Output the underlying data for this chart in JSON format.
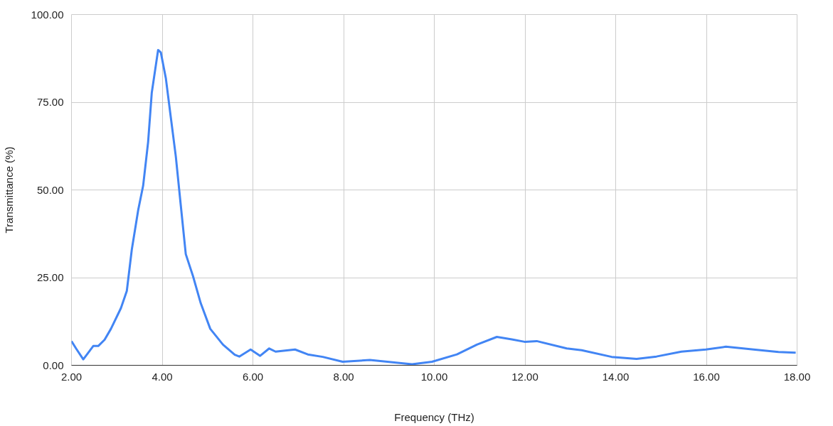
{
  "chart_data": {
    "type": "line",
    "xlabel": "Frequency (THz)",
    "ylabel": "Transmittance (%)",
    "xlim": [
      2,
      18
    ],
    "ylim": [
      0,
      100
    ],
    "xticks": [
      {
        "value": 2,
        "label": "2.00"
      },
      {
        "value": 4,
        "label": "4.00"
      },
      {
        "value": 6,
        "label": "6.00"
      },
      {
        "value": 8,
        "label": "8.00"
      },
      {
        "value": 10,
        "label": "10.00"
      },
      {
        "value": 12,
        "label": "12.00"
      },
      {
        "value": 14,
        "label": "14.00"
      },
      {
        "value": 16,
        "label": "16.00"
      },
      {
        "value": 18,
        "label": "18.00"
      }
    ],
    "yticks": [
      {
        "value": 0,
        "label": "0.00"
      },
      {
        "value": 25,
        "label": "25.00"
      },
      {
        "value": 50,
        "label": "50.00"
      },
      {
        "value": 75,
        "label": "75.00"
      },
      {
        "value": 100,
        "label": "100.00"
      }
    ],
    "grid": true,
    "marker": "none",
    "line_style": "solid",
    "series": [
      {
        "color": "#4285f4",
        "x": [
          2.0,
          2.1,
          2.26,
          2.48,
          2.59,
          2.73,
          2.87,
          3.09,
          3.22,
          3.33,
          3.47,
          3.58,
          3.69,
          3.77,
          3.91,
          3.97,
          4.08,
          4.19,
          4.3,
          4.41,
          4.52,
          4.68,
          4.85,
          5.06,
          5.34,
          5.6,
          5.7,
          5.95,
          6.16,
          6.36,
          6.5,
          6.93,
          7.21,
          7.54,
          7.98,
          8.58,
          9.51,
          9.95,
          10.5,
          10.94,
          11.38,
          11.71,
          11.99,
          12.26,
          12.92,
          13.25,
          13.91,
          14.46,
          14.9,
          15.45,
          15.99,
          16.43,
          17.04,
          17.59,
          17.97
        ],
        "values": [
          6.9,
          4.8,
          1.7,
          5.5,
          5.5,
          7.3,
          10.4,
          16.3,
          21.2,
          33,
          44.2,
          51.2,
          63.7,
          77.7,
          89.9,
          89.2,
          81.9,
          70.7,
          59.6,
          45.6,
          31.7,
          25.4,
          17.7,
          10.4,
          5.9,
          3.0,
          2.5,
          4.5,
          2.7,
          4.8,
          3.9,
          4.5,
          3.1,
          2.4,
          1.0,
          1.5,
          0.3,
          1.0,
          3.1,
          5.9,
          8.1,
          7.4,
          6.7,
          6.9,
          4.8,
          4.3,
          2.4,
          1.8,
          2.5,
          3.9,
          4.5,
          5.3,
          4.5,
          3.8,
          3.6
        ]
      }
    ]
  }
}
